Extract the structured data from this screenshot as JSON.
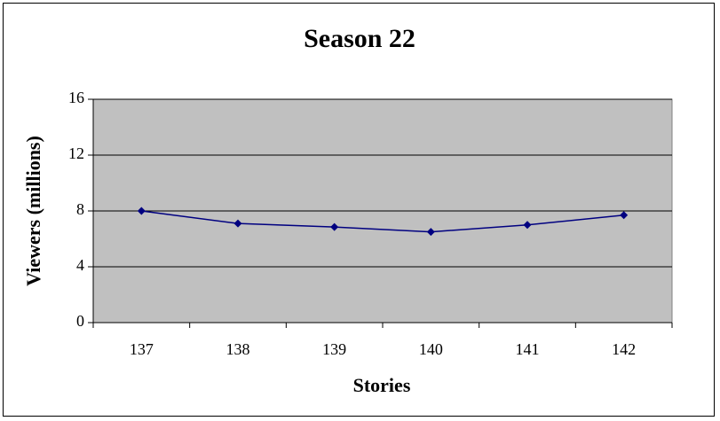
{
  "chart_data": {
    "type": "line",
    "title": "Season 22",
    "x_label": "Stories",
    "y_label": "Viewers (millions)",
    "categories": [
      "137",
      "138",
      "139",
      "140",
      "141",
      "142"
    ],
    "series": [
      {
        "name": "Viewers",
        "color": "#000080",
        "values": [
          8.0,
          7.1,
          6.85,
          6.5,
          7.0,
          7.7
        ]
      }
    ],
    "ylim": [
      0,
      16
    ],
    "yticks": [
      0,
      4,
      8,
      12,
      16
    ],
    "grid": true,
    "plot_background": "#c0c0c0"
  }
}
